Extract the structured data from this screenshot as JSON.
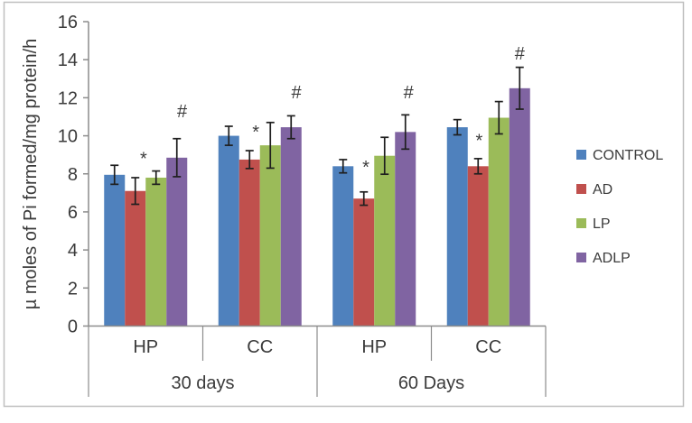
{
  "figure": {
    "border_color": "#bfbfbf",
    "background": "#ffffff"
  },
  "chart_data": {
    "type": "bar",
    "title": "",
    "xlabel": "",
    "ylabel": "µ moles of Pi formed/mg protein/h",
    "ylim": [
      0,
      16
    ],
    "ytick_step": 2,
    "grid": false,
    "legend_position": "right",
    "categories_level1": [
      "HP",
      "CC",
      "HP",
      "CC"
    ],
    "categories_level2": [
      "30 days",
      "60 Days"
    ],
    "series": [
      {
        "name": "CONTROL",
        "color": "#4F81BD",
        "values": [
          7.95,
          10.0,
          8.4,
          10.45
        ],
        "errors": [
          0.5,
          0.5,
          0.35,
          0.4
        ]
      },
      {
        "name": "AD",
        "color": "#C0504D",
        "values": [
          7.1,
          8.75,
          6.7,
          8.4
        ],
        "errors": [
          0.7,
          0.47,
          0.35,
          0.4
        ]
      },
      {
        "name": "LP",
        "color": "#9BBB59",
        "values": [
          7.8,
          9.5,
          8.95,
          10.95
        ],
        "errors": [
          0.35,
          1.2,
          0.97,
          0.85
        ]
      },
      {
        "name": "ADLP",
        "color": "#8064A2",
        "values": [
          8.85,
          10.45,
          10.2,
          12.5
        ],
        "errors": [
          1.0,
          0.6,
          0.9,
          1.1
        ]
      }
    ],
    "annotations": [
      {
        "symbol": "*",
        "group": 0,
        "bar_offset": 1.9,
        "value": 9.0
      },
      {
        "symbol": "#",
        "group": 0,
        "bar_offset": 3.75,
        "value": 11.3
      },
      {
        "symbol": "*",
        "group": 1,
        "bar_offset": 1.8,
        "value": 10.4
      },
      {
        "symbol": "#",
        "group": 1,
        "bar_offset": 3.75,
        "value": 12.3
      },
      {
        "symbol": "*",
        "group": 2,
        "bar_offset": 1.6,
        "value": 8.55
      },
      {
        "symbol": "#",
        "group": 2,
        "bar_offset": 3.65,
        "value": 12.3
      },
      {
        "symbol": "*",
        "group": 3,
        "bar_offset": 1.55,
        "value": 9.95
      },
      {
        "symbol": "#",
        "group": 3,
        "bar_offset": 3.5,
        "value": 14.35
      }
    ],
    "colors": {
      "axis_line": "#8c8c8c",
      "tick_text": "#3b3b3b",
      "error_bar": "#1f1f1f",
      "annotation_text": "#1f1f1f"
    }
  }
}
